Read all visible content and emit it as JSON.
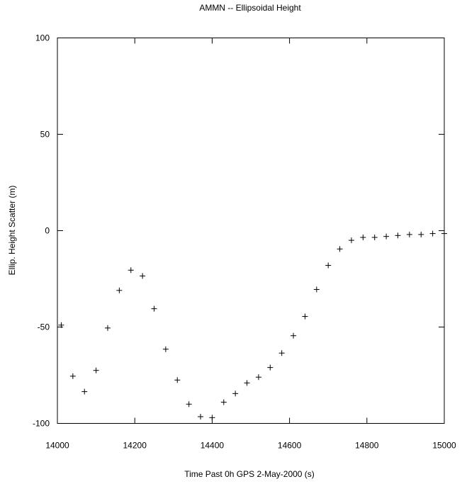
{
  "chart_data": {
    "type": "scatter",
    "title": "AMMN -- Ellipsoidal Height",
    "xlabel": "Time Past 0h GPS 2-May-2000  (s)",
    "ylabel": "Ellip. Height Scatter  (m)",
    "xlim": [
      14000,
      15000
    ],
    "ylim": [
      -100,
      100
    ],
    "xticks": [
      14000,
      14200,
      14400,
      14600,
      14800,
      15000
    ],
    "yticks": [
      -100,
      -50,
      0,
      50,
      100
    ],
    "marker": "+",
    "grid": false,
    "legend": "none",
    "series": [
      {
        "points": [
          [
            14010,
            -49
          ],
          [
            14040,
            -75.5
          ],
          [
            14070,
            -83.5
          ],
          [
            14100,
            -72.5
          ],
          [
            14130,
            -50.5
          ],
          [
            14160,
            -31
          ],
          [
            14190,
            -20.5
          ],
          [
            14220,
            -23.5
          ],
          [
            14250,
            -40.5
          ],
          [
            14280,
            -61.5
          ],
          [
            14310,
            -77.5
          ],
          [
            14340,
            -90
          ],
          [
            14370,
            -96.5
          ],
          [
            14400,
            -97
          ],
          [
            14430,
            -89
          ],
          [
            14460,
            -84.5
          ],
          [
            14490,
            -79
          ],
          [
            14520,
            -76
          ],
          [
            14550,
            -71
          ],
          [
            14580,
            -63.5
          ],
          [
            14610,
            -54.5
          ],
          [
            14640,
            -44.5
          ],
          [
            14670,
            -30.5
          ],
          [
            14700,
            -18
          ],
          [
            14730,
            -9.5
          ],
          [
            14760,
            -5
          ],
          [
            14790,
            -3.5
          ],
          [
            14820,
            -3.5
          ],
          [
            14850,
            -3
          ],
          [
            14880,
            -2.5
          ],
          [
            14910,
            -2
          ],
          [
            14940,
            -2
          ],
          [
            14970,
            -1.5
          ],
          [
            15000,
            -1.5
          ]
        ]
      }
    ]
  }
}
